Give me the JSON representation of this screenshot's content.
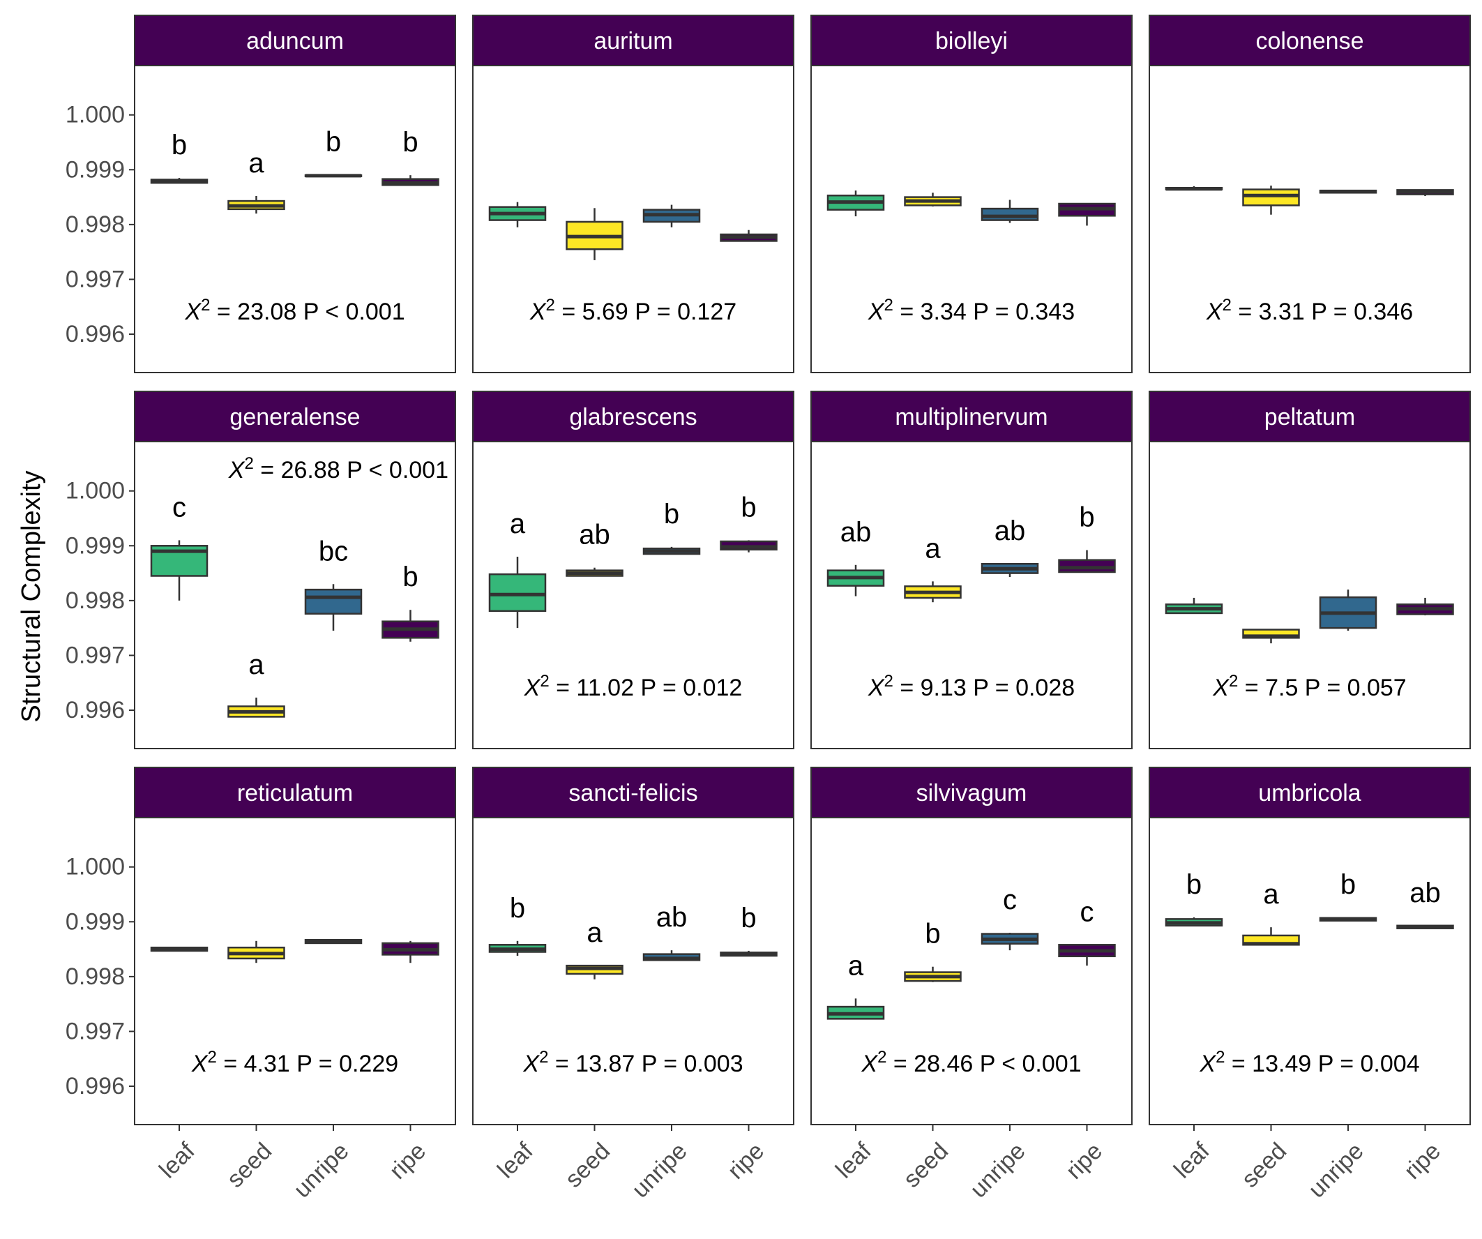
{
  "chart_data": {
    "type": "boxplot",
    "ylabel": "Structural Complexity",
    "categories": [
      "leaf",
      "seed",
      "unripe",
      "ripe"
    ],
    "ylim": [
      0.9953,
      1.0009
    ],
    "yticks": [
      1.0,
      0.999,
      0.998,
      0.997,
      0.996
    ],
    "ytick_labels": [
      "1.000",
      "0.999",
      "0.998",
      "0.997",
      "0.996"
    ],
    "colors": {
      "leaf": "#35b779",
      "seed": "#fde725",
      "unripe": "#31688e",
      "ripe": "#440154"
    },
    "strip_color": "#440154",
    "panels": [
      {
        "title": "aduncum",
        "stat": {
          "chisq": "23.08",
          "p": "P < 0.001"
        },
        "stat_pos": "bottom-center",
        "groups": [
          {
            "letter": "b",
            "min": 0.99875,
            "q1": 0.99876,
            "med": 0.99879,
            "q3": 0.99882,
            "max": 0.99885
          },
          {
            "letter": "a",
            "min": 0.9982,
            "q1": 0.99828,
            "med": 0.99834,
            "q3": 0.99843,
            "max": 0.99852
          },
          {
            "letter": "b",
            "min": 0.99888,
            "q1": 0.99888,
            "med": 0.99889,
            "q3": 0.9989,
            "max": 0.99891
          },
          {
            "letter": "b",
            "min": 0.99872,
            "q1": 0.99872,
            "med": 0.99876,
            "q3": 0.99883,
            "max": 0.9989
          }
        ]
      },
      {
        "title": "auritum",
        "stat": {
          "chisq": "5.69",
          "p": "P = 0.127"
        },
        "stat_pos": "bottom-center",
        "groups": [
          {
            "letter": "",
            "min": 0.99795,
            "q1": 0.99808,
            "med": 0.9982,
            "q3": 0.99832,
            "max": 0.99841
          },
          {
            "letter": "",
            "min": 0.99735,
            "q1": 0.99755,
            "med": 0.99778,
            "q3": 0.99805,
            "max": 0.9983
          },
          {
            "letter": "",
            "min": 0.99795,
            "q1": 0.99805,
            "med": 0.99818,
            "q3": 0.99827,
            "max": 0.99836
          },
          {
            "letter": "",
            "min": 0.9977,
            "q1": 0.9977,
            "med": 0.99777,
            "q3": 0.99782,
            "max": 0.9979
          }
        ]
      },
      {
        "title": "biolleyi",
        "stat": {
          "chisq": "3.34",
          "p": "P = 0.343"
        },
        "stat_pos": "bottom-center",
        "groups": [
          {
            "letter": "",
            "min": 0.99815,
            "q1": 0.99827,
            "med": 0.99841,
            "q3": 0.99853,
            "max": 0.99862
          },
          {
            "letter": "",
            "min": 0.99833,
            "q1": 0.99835,
            "med": 0.99843,
            "q3": 0.9985,
            "max": 0.99858
          },
          {
            "letter": "",
            "min": 0.99803,
            "q1": 0.99808,
            "med": 0.99815,
            "q3": 0.99829,
            "max": 0.99845
          },
          {
            "letter": "",
            "min": 0.99798,
            "q1": 0.99816,
            "med": 0.99829,
            "q3": 0.99838,
            "max": 0.99838
          }
        ]
      },
      {
        "title": "colonense",
        "stat": {
          "chisq": "3.31",
          "p": "P = 0.346"
        },
        "stat_pos": "bottom-center",
        "groups": [
          {
            "letter": "",
            "min": 0.99864,
            "q1": 0.99864,
            "med": 0.99865,
            "q3": 0.99867,
            "max": 0.9987
          },
          {
            "letter": "",
            "min": 0.99818,
            "q1": 0.99835,
            "med": 0.99853,
            "q3": 0.99864,
            "max": 0.99871
          },
          {
            "letter": "",
            "min": 0.99858,
            "q1": 0.99858,
            "med": 0.9986,
            "q3": 0.99862,
            "max": 0.99862
          },
          {
            "letter": "",
            "min": 0.99852,
            "q1": 0.99855,
            "med": 0.9986,
            "q3": 0.99863,
            "max": 0.99863
          }
        ]
      },
      {
        "title": "generalense",
        "stat": {
          "chisq": "26.88",
          "p": "P < 0.001"
        },
        "stat_pos": "top-right",
        "groups": [
          {
            "letter": "c",
            "min": 0.998,
            "q1": 0.99845,
            "med": 0.9989,
            "q3": 0.999,
            "max": 0.9991
          },
          {
            "letter": "a",
            "min": 0.99588,
            "q1": 0.99588,
            "med": 0.99597,
            "q3": 0.99607,
            "max": 0.99623
          },
          {
            "letter": "bc",
            "min": 0.99745,
            "q1": 0.99776,
            "med": 0.99806,
            "q3": 0.9982,
            "max": 0.9983
          },
          {
            "letter": "b",
            "min": 0.99725,
            "q1": 0.99732,
            "med": 0.99748,
            "q3": 0.99762,
            "max": 0.99783
          }
        ]
      },
      {
        "title": "glabrescens",
        "stat": {
          "chisq": "11.02",
          "p": "P = 0.012"
        },
        "stat_pos": "bottom-center",
        "groups": [
          {
            "letter": "a",
            "min": 0.9975,
            "q1": 0.99781,
            "med": 0.99811,
            "q3": 0.99848,
            "max": 0.9988
          },
          {
            "letter": "ab",
            "min": 0.99845,
            "q1": 0.99845,
            "med": 0.9985,
            "q3": 0.99855,
            "max": 0.9986
          },
          {
            "letter": "b",
            "min": 0.99885,
            "q1": 0.99885,
            "med": 0.9989,
            "q3": 0.99895,
            "max": 0.99898
          },
          {
            "letter": "b",
            "min": 0.99888,
            "q1": 0.99893,
            "med": 0.99898,
            "q3": 0.99908,
            "max": 0.9991
          }
        ]
      },
      {
        "title": "multiplinervum",
        "stat": {
          "chisq": "9.13",
          "p": "P = 0.028"
        },
        "stat_pos": "bottom-center",
        "groups": [
          {
            "letter": "ab",
            "min": 0.99808,
            "q1": 0.99827,
            "med": 0.99842,
            "q3": 0.99855,
            "max": 0.99865
          },
          {
            "letter": "a",
            "min": 0.99797,
            "q1": 0.99805,
            "med": 0.99815,
            "q3": 0.99826,
            "max": 0.99835
          },
          {
            "letter": "ab",
            "min": 0.99843,
            "q1": 0.9985,
            "med": 0.99858,
            "q3": 0.99867,
            "max": 0.99867
          },
          {
            "letter": "b",
            "min": 0.99852,
            "q1": 0.99852,
            "med": 0.9986,
            "q3": 0.99874,
            "max": 0.99892
          }
        ]
      },
      {
        "title": "peltatum",
        "stat": {
          "chisq": "7.5",
          "p": "P = 0.057"
        },
        "stat_pos": "bottom-center",
        "groups": [
          {
            "letter": "",
            "min": 0.99777,
            "q1": 0.99777,
            "med": 0.99785,
            "q3": 0.99793,
            "max": 0.99805
          },
          {
            "letter": "",
            "min": 0.99722,
            "q1": 0.99732,
            "med": 0.99735,
            "q3": 0.99747,
            "max": 0.99747
          },
          {
            "letter": "",
            "min": 0.99745,
            "q1": 0.9975,
            "med": 0.99777,
            "q3": 0.99806,
            "max": 0.9982
          },
          {
            "letter": "",
            "min": 0.99773,
            "q1": 0.99775,
            "med": 0.99785,
            "q3": 0.99793,
            "max": 0.99805
          }
        ]
      },
      {
        "title": "reticulatum",
        "stat": {
          "chisq": "4.31",
          "p": "P = 0.229"
        },
        "stat_pos": "bottom-center",
        "groups": [
          {
            "letter": "",
            "min": 0.99847,
            "q1": 0.99847,
            "med": 0.9985,
            "q3": 0.99853,
            "max": 0.99853
          },
          {
            "letter": "",
            "min": 0.99825,
            "q1": 0.99833,
            "med": 0.99842,
            "q3": 0.99853,
            "max": 0.99865
          },
          {
            "letter": "",
            "min": 0.99861,
            "q1": 0.99861,
            "med": 0.99864,
            "q3": 0.99867,
            "max": 0.99867
          },
          {
            "letter": "",
            "min": 0.99825,
            "q1": 0.9984,
            "med": 0.99849,
            "q3": 0.99861,
            "max": 0.99865
          }
        ]
      },
      {
        "title": "sancti-felicis",
        "stat": {
          "chisq": "13.87",
          "p": "P = 0.003"
        },
        "stat_pos": "bottom-center",
        "groups": [
          {
            "letter": "b",
            "min": 0.99838,
            "q1": 0.99845,
            "med": 0.9985,
            "q3": 0.99858,
            "max": 0.99865
          },
          {
            "letter": "a",
            "min": 0.99795,
            "q1": 0.99805,
            "med": 0.99815,
            "q3": 0.9982,
            "max": 0.9982
          },
          {
            "letter": "ab",
            "min": 0.9983,
            "q1": 0.9983,
            "med": 0.99833,
            "q3": 0.99841,
            "max": 0.99848
          },
          {
            "letter": "b",
            "min": 0.99838,
            "q1": 0.99838,
            "med": 0.99841,
            "q3": 0.99844,
            "max": 0.99847
          }
        ]
      },
      {
        "title": "silvivagum",
        "stat": {
          "chisq": "28.46",
          "p": "P < 0.001"
        },
        "stat_pos": "bottom-center",
        "groups": [
          {
            "letter": "a",
            "min": 0.99723,
            "q1": 0.99723,
            "med": 0.99732,
            "q3": 0.99745,
            "max": 0.9976
          },
          {
            "letter": "b",
            "min": 0.9979,
            "q1": 0.99792,
            "med": 0.998,
            "q3": 0.99808,
            "max": 0.99818
          },
          {
            "letter": "c",
            "min": 0.99848,
            "q1": 0.9986,
            "med": 0.99868,
            "q3": 0.99878,
            "max": 0.9988
          },
          {
            "letter": "c",
            "min": 0.9982,
            "q1": 0.99837,
            "med": 0.99847,
            "q3": 0.99858,
            "max": 0.99858
          }
        ]
      },
      {
        "title": "umbricola",
        "stat": {
          "chisq": "13.49",
          "p": "P = 0.004"
        },
        "stat_pos": "bottom-center",
        "groups": [
          {
            "letter": "b",
            "min": 0.99893,
            "q1": 0.99893,
            "med": 0.99898,
            "q3": 0.99905,
            "max": 0.99908
          },
          {
            "letter": "a",
            "min": 0.99858,
            "q1": 0.99858,
            "med": 0.9986,
            "q3": 0.99875,
            "max": 0.9989
          },
          {
            "letter": "b",
            "min": 0.99902,
            "q1": 0.99902,
            "med": 0.99905,
            "q3": 0.99907,
            "max": 0.99908
          },
          {
            "letter": "ab",
            "min": 0.99888,
            "q1": 0.99888,
            "med": 0.9989,
            "q3": 0.99893,
            "max": 0.99893
          }
        ]
      }
    ]
  }
}
